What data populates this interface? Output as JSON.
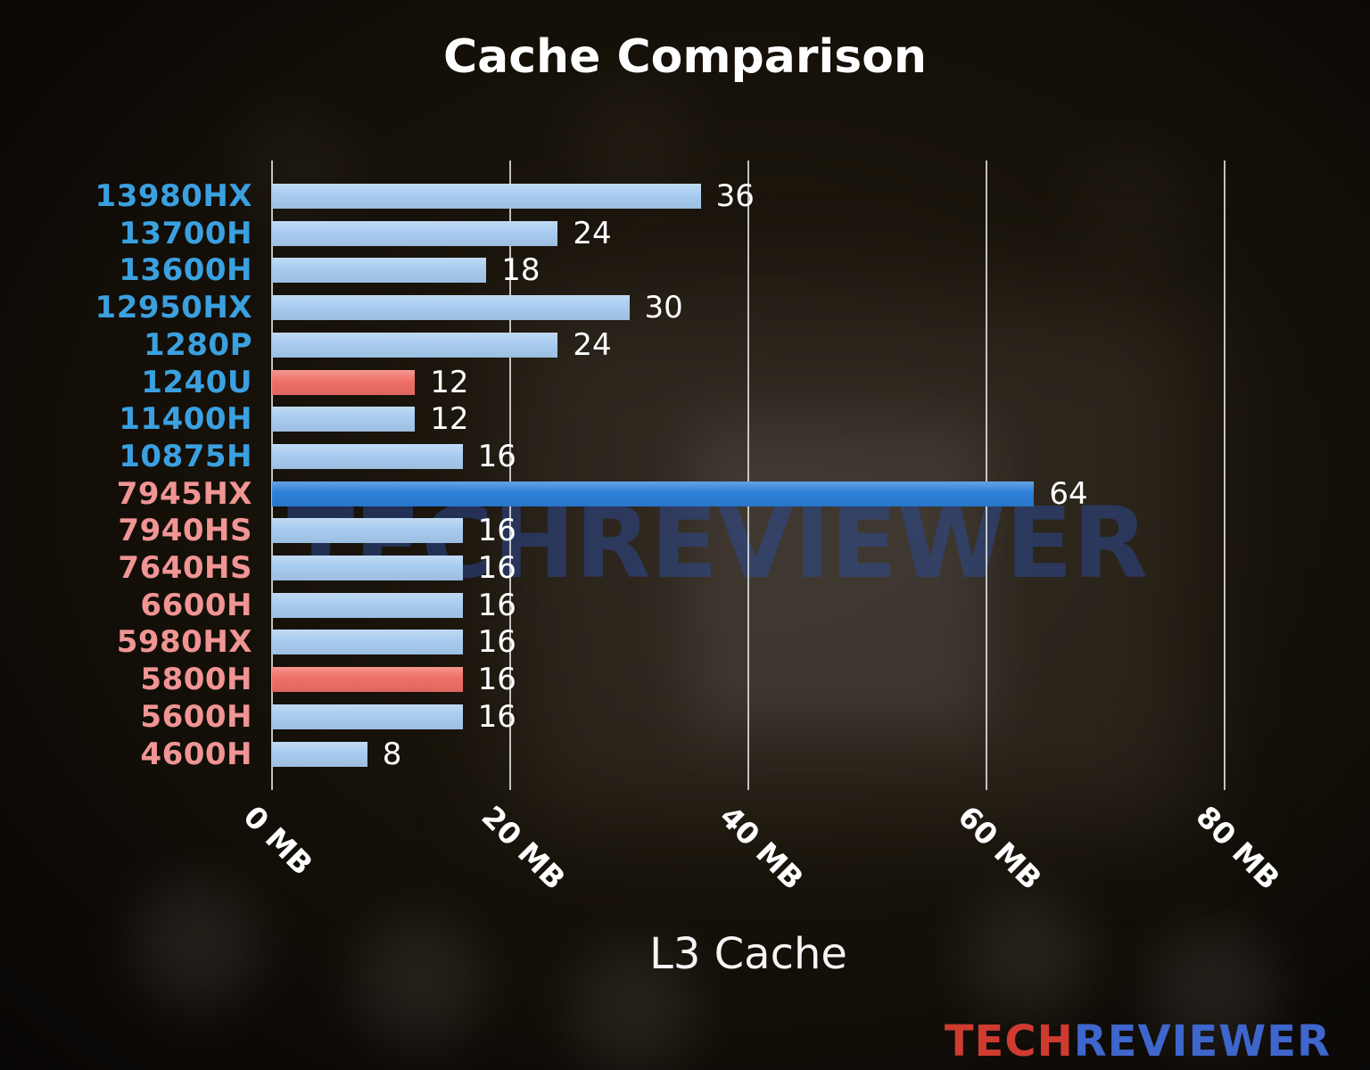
{
  "title": "Cache Comparison",
  "watermark": "TECHREVIEWER",
  "logo": {
    "part1": "TECH",
    "part2": "REVIEWER",
    "part1_color": "#cf3b30",
    "part2_color": "#3e66cc"
  },
  "colors": {
    "background": "#0b0806",
    "title_text": "#ffffff",
    "value_text": "#ffffff",
    "tick_text": "#ffffff",
    "xlabel_text": "#f5f5f5",
    "gridline": "#e1e1e1",
    "intel_label": "#3ba0e0",
    "amd_label": "#f09494",
    "bar_light_blue": "#a8ccf0",
    "bar_red": "#ef6f66",
    "bar_strong_blue": "#2b7fd9",
    "watermark": "#2b4c9b"
  },
  "chart_data": {
    "type": "bar",
    "orientation": "horizontal",
    "title": "Cache Comparison",
    "xlabel": "L3 Cache",
    "unit": "MB",
    "xlim": [
      0,
      80
    ],
    "grid": true,
    "x_ticks": [
      "0 MB",
      "20 MB",
      "40 MB",
      "60 MB",
      "80 MB"
    ],
    "x_tick_values": [
      0,
      20,
      40,
      60,
      80
    ],
    "categories": [
      "13980HX",
      "13700H",
      "13600H",
      "12950HX",
      "1280P",
      "1240U",
      "11400H",
      "10875H",
      "7945HX",
      "7940HS",
      "7640HS",
      "6600H",
      "5980HX",
      "5800H",
      "5600H",
      "4600H"
    ],
    "values": [
      36,
      24,
      18,
      30,
      24,
      12,
      12,
      16,
      64,
      16,
      16,
      16,
      16,
      16,
      16,
      8
    ],
    "rows": [
      {
        "label": "13980HX",
        "value": 36,
        "brand": "intel",
        "label_color": "#3ba0e0",
        "bar_color": "#a8ccf0"
      },
      {
        "label": "13700H",
        "value": 24,
        "brand": "intel",
        "label_color": "#3ba0e0",
        "bar_color": "#a8ccf0"
      },
      {
        "label": "13600H",
        "value": 18,
        "brand": "intel",
        "label_color": "#3ba0e0",
        "bar_color": "#a8ccf0"
      },
      {
        "label": "12950HX",
        "value": 30,
        "brand": "intel",
        "label_color": "#3ba0e0",
        "bar_color": "#a8ccf0"
      },
      {
        "label": "1280P",
        "value": 24,
        "brand": "intel",
        "label_color": "#3ba0e0",
        "bar_color": "#a8ccf0"
      },
      {
        "label": "1240U",
        "value": 12,
        "brand": "intel",
        "label_color": "#3ba0e0",
        "bar_color": "#ef6f66"
      },
      {
        "label": "11400H",
        "value": 12,
        "brand": "intel",
        "label_color": "#3ba0e0",
        "bar_color": "#a8ccf0"
      },
      {
        "label": "10875H",
        "value": 16,
        "brand": "intel",
        "label_color": "#3ba0e0",
        "bar_color": "#a8ccf0"
      },
      {
        "label": "7945HX",
        "value": 64,
        "brand": "amd",
        "label_color": "#f09494",
        "bar_color": "#2b7fd9"
      },
      {
        "label": "7940HS",
        "value": 16,
        "brand": "amd",
        "label_color": "#f09494",
        "bar_color": "#a8ccf0"
      },
      {
        "label": "7640HS",
        "value": 16,
        "brand": "amd",
        "label_color": "#f09494",
        "bar_color": "#a8ccf0"
      },
      {
        "label": "6600H",
        "value": 16,
        "brand": "amd",
        "label_color": "#f09494",
        "bar_color": "#a8ccf0"
      },
      {
        "label": "5980HX",
        "value": 16,
        "brand": "amd",
        "label_color": "#f09494",
        "bar_color": "#a8ccf0"
      },
      {
        "label": "5800H",
        "value": 16,
        "brand": "amd",
        "label_color": "#f09494",
        "bar_color": "#ef6f66"
      },
      {
        "label": "5600H",
        "value": 16,
        "brand": "amd",
        "label_color": "#f09494",
        "bar_color": "#a8ccf0"
      },
      {
        "label": "4600H",
        "value": 8,
        "brand": "amd",
        "label_color": "#f09494",
        "bar_color": "#a8ccf0"
      }
    ]
  }
}
